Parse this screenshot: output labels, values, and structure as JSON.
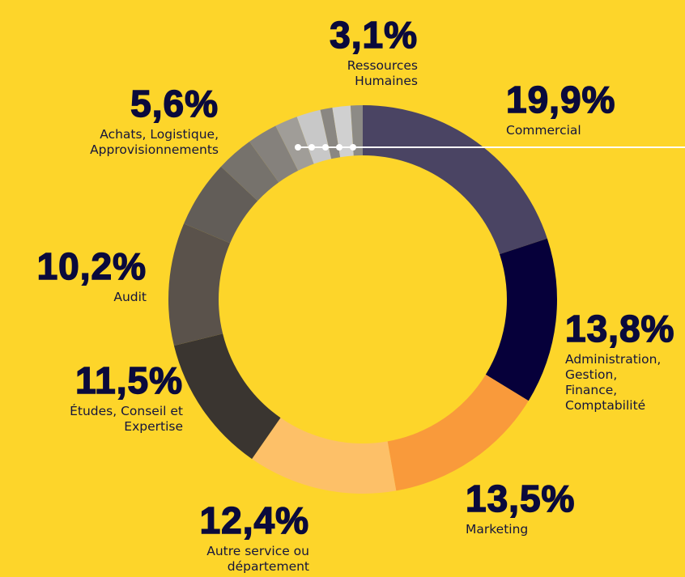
{
  "chart_data": {
    "type": "donut",
    "categories": [
      "Commercial",
      "Administration, Gestion, Finance, Comptabilité",
      "Marketing",
      "Autre service ou département",
      "Études, Conseil et Expertise",
      "Audit",
      "Achats, Logistique, Approvisionnements",
      "Ressources Humaines",
      null,
      null,
      null,
      null,
      null,
      null
    ],
    "values": [
      19.9,
      13.8,
      13.5,
      12.4,
      11.5,
      10.2,
      5.6,
      3.1,
      2.5,
      1.9,
      2.0,
      1.0,
      1.5,
      1.0
    ],
    "value_labels": [
      "19,9%",
      "13,8%",
      "13,5%",
      "12,4%",
      "11,5%",
      "10,2%",
      "5,6%",
      "3,1%",
      null,
      null,
      null,
      null,
      null,
      null
    ],
    "colors": [
      "#4a4463",
      "#06003a",
      "#f99a3b",
      "#fdc068",
      "#3a3530",
      "#5a524b",
      "#625d58",
      "#76726c",
      "#85817c",
      "#a09d98",
      "#c8c8c8",
      "#8a8782",
      "#d0d0d0",
      "#8d8b86"
    ]
  }
}
